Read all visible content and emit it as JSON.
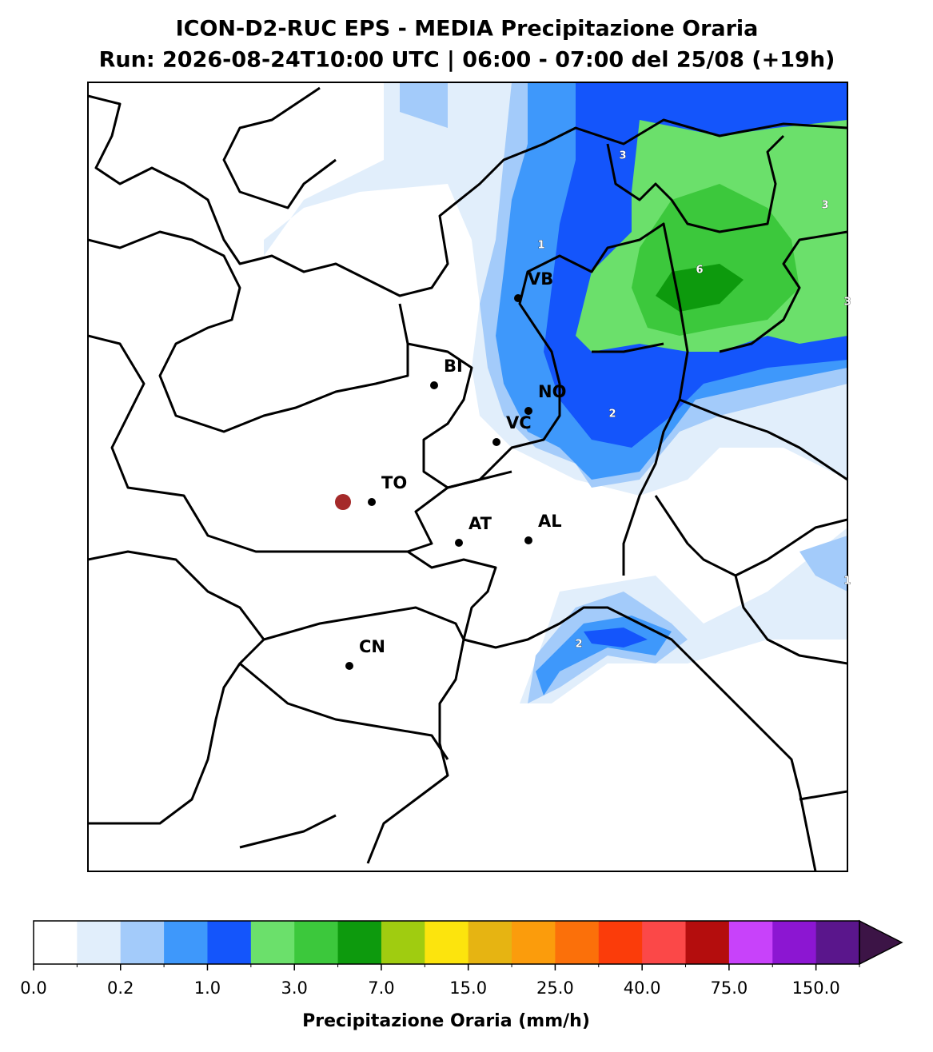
{
  "header": {
    "title": "ICON-D2-RUC EPS - MEDIA Precipitazione Oraria",
    "subtitle": "Run: 2026-08-24T10:00 UTC | 06:00 - 07:00 del 25/08 (+19h)"
  },
  "cities": [
    {
      "label": "VB"
    },
    {
      "label": "BI"
    },
    {
      "label": "NO"
    },
    {
      "label": "VC"
    },
    {
      "label": "TO"
    },
    {
      "label": "AT"
    },
    {
      "label": "AL"
    },
    {
      "label": "CN"
    }
  ],
  "contour_labels": [
    "3",
    "3",
    "1",
    "6",
    "3",
    "2",
    "1",
    "2"
  ],
  "colorbar": {
    "colors": [
      "#ffffff",
      "#e1eefb",
      "#a3cbfa",
      "#3e98fb",
      "#1455fb",
      "#6be06b",
      "#3cc83c",
      "#0d9a0d",
      "#a0cc10",
      "#fce40d",
      "#e6b412",
      "#fb9c0c",
      "#fb700a",
      "#fb3c0a",
      "#fb4848",
      "#b40d0d",
      "#c842fa",
      "#8c16d2",
      "#5a168c"
    ],
    "extend_color": "#3c1446",
    "tick_labels": [
      "0.0",
      "0.2",
      "1.0",
      "3.0",
      "7.0",
      "15.0",
      "25.0",
      "40.0",
      "75.0",
      "150.0"
    ],
    "label": "Precipitazione Oraria (mm/h)"
  }
}
